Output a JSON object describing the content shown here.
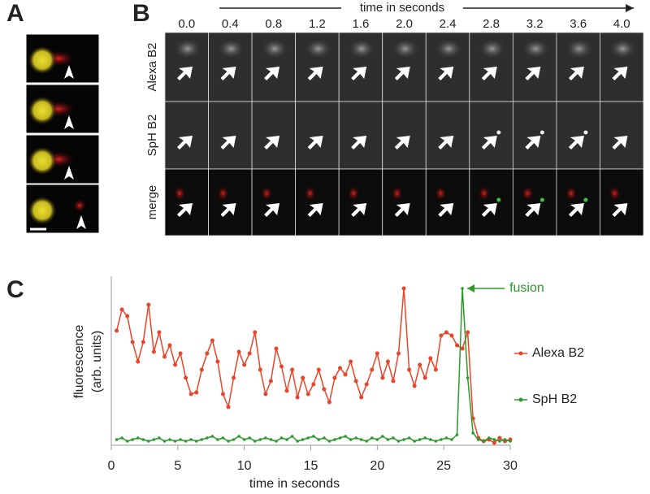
{
  "panel_labels": {
    "a": "A",
    "b": "B",
    "c": "C"
  },
  "panel_b": {
    "axis_label": "time in seconds",
    "time_labels": [
      "0.0",
      "0.4",
      "0.8",
      "1.2",
      "1.6",
      "2.0",
      "2.4",
      "2.8",
      "3.2",
      "3.6",
      "4.0"
    ],
    "row_labels": [
      "Alexa B2",
      "SpH B2",
      "merge"
    ]
  },
  "chart_data": {
    "type": "line",
    "xlabel": "time in seconds",
    "ylabel": [
      "fluorescence",
      "(arb. units)"
    ],
    "annotation": "fusion",
    "x": [
      0.4,
      0.8,
      1.2,
      1.6,
      2.0,
      2.4,
      2.8,
      3.2,
      3.6,
      4.0,
      4.4,
      4.8,
      5.2,
      5.6,
      6.0,
      6.4,
      6.8,
      7.2,
      7.6,
      8.0,
      8.4,
      8.8,
      9.2,
      9.6,
      10.0,
      10.4,
      10.8,
      11.2,
      11.6,
      12.0,
      12.4,
      12.8,
      13.2,
      13.6,
      14.0,
      14.4,
      14.8,
      15.2,
      15.6,
      16.0,
      16.4,
      16.8,
      17.2,
      17.6,
      18.0,
      18.4,
      18.8,
      19.2,
      19.6,
      20.0,
      20.4,
      20.8,
      21.2,
      21.6,
      22.0,
      22.4,
      22.8,
      23.2,
      23.6,
      24.0,
      24.4,
      24.8,
      25.2,
      25.6,
      26.0,
      26.4,
      26.8,
      27.2,
      27.6,
      28.0,
      28.4,
      28.8,
      29.2,
      29.6,
      30.0
    ],
    "series": [
      {
        "name": "Alexa B2",
        "color": "#e8452a",
        "values": [
          69,
          82,
          78,
          62,
          50,
          62,
          85,
          56,
          68,
          53,
          60,
          48,
          55,
          40,
          30,
          31,
          45,
          55,
          63,
          50,
          30,
          22,
          40,
          56,
          48,
          55,
          68,
          45,
          30,
          38,
          58,
          47,
          32,
          45,
          28,
          40,
          30,
          36,
          45,
          33,
          25,
          40,
          46,
          42,
          50,
          38,
          28,
          36,
          45,
          55,
          40,
          50,
          38,
          55,
          95,
          45,
          35,
          48,
          40,
          52,
          45,
          66,
          68,
          66,
          60,
          58,
          68,
          15,
          3,
          1,
          2,
          0,
          3,
          1,
          2
        ]
      },
      {
        "name": "SpH  B2",
        "color": "#2a9a2a",
        "values": [
          2,
          3,
          1,
          2,
          3,
          2,
          1,
          2,
          3,
          1,
          2,
          1,
          2,
          1,
          2,
          1,
          2,
          3,
          4,
          2,
          3,
          1,
          2,
          4,
          2,
          3,
          1,
          2,
          3,
          2,
          1,
          3,
          2,
          4,
          1,
          2,
          3,
          4,
          2,
          3,
          1,
          2,
          3,
          4,
          2,
          3,
          2,
          1,
          3,
          2,
          4,
          2,
          3,
          1,
          2,
          3,
          1,
          2,
          3,
          2,
          1,
          2,
          3,
          2,
          5,
          95,
          40,
          6,
          2,
          1,
          3,
          2,
          1,
          2,
          1
        ]
      }
    ],
    "xlim": [
      0,
      30
    ],
    "xticks": [
      0,
      5,
      10,
      15,
      20,
      25,
      30
    ],
    "ylim": [
      0,
      100
    ],
    "legend": "right"
  }
}
